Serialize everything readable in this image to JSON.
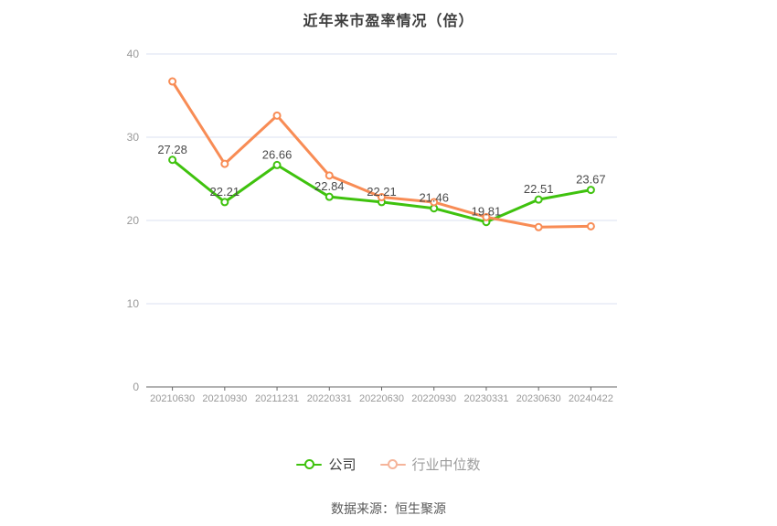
{
  "title": "近年来市盈率情况（倍）",
  "footer": "数据来源：恒生聚源",
  "legend": [
    {
      "label": "公司",
      "color": "#3fc20e",
      "text_color": "#404040"
    },
    {
      "label": "行业中位数",
      "color": "#f5b49a",
      "text_color": "#9c9c9c"
    }
  ],
  "colors": {
    "company_line": "#3fc20e",
    "industry_line": "#f88c55",
    "grid": "#dbe2f2",
    "axis": "#666666",
    "axis_label": "#999999",
    "data_label": "#4a4a4a",
    "title": "#3d3d3d",
    "footer": "#595959",
    "background": "#ffffff"
  },
  "chart_data": {
    "type": "line",
    "title": "近年来市盈率情况（倍）",
    "categories": [
      "20210630",
      "20210930",
      "20211231",
      "20220331",
      "20220630",
      "20220930",
      "20230331",
      "20230630",
      "20240422"
    ],
    "series": [
      {
        "name": "公司",
        "color": "#3fc20e",
        "values": [
          27.28,
          22.21,
          26.66,
          22.84,
          22.21,
          21.46,
          19.81,
          22.51,
          23.67
        ],
        "value_labels": [
          "27.28",
          "22.21",
          "26.66",
          "22.84",
          "22.21",
          "21.46",
          "19.81",
          "22.51",
          "23.67"
        ],
        "labeled": true
      },
      {
        "name": "行业中位数",
        "color": "#f88c55",
        "values": [
          36.7,
          26.8,
          32.6,
          25.4,
          22.8,
          22.2,
          20.4,
          19.2,
          19.3
        ],
        "value_labels": [],
        "labeled": false
      }
    ],
    "xlabel": "",
    "ylabel": "",
    "ylim": [
      0,
      40
    ],
    "yticks": [
      0,
      10,
      20,
      30,
      40
    ],
    "grid": true,
    "legend_position": "bottom"
  }
}
